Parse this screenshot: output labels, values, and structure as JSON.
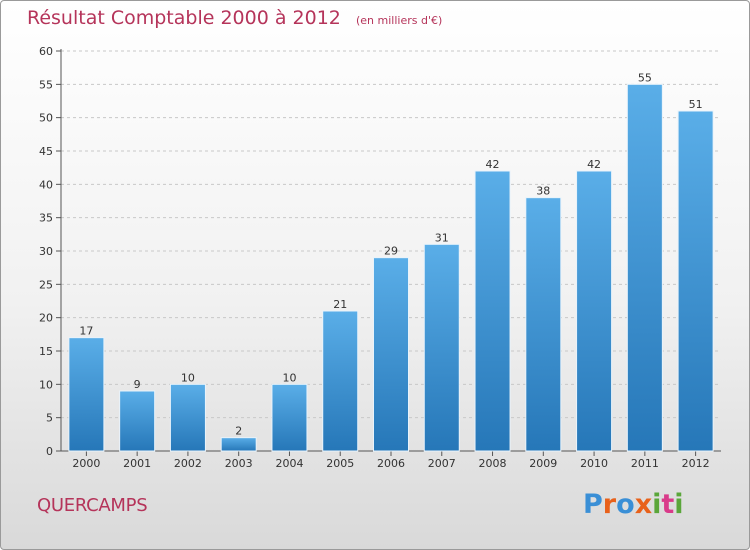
{
  "header": {
    "title": "Résultat Comptable 2000 à 2012",
    "subtitle": "(en milliers d'€)"
  },
  "commune": "QUERCAMPS",
  "logo": {
    "text": "Proxiti",
    "letters": [
      {
        "char": "P",
        "color": "#3a8fd6"
      },
      {
        "char": "r",
        "color": "#e8611a"
      },
      {
        "char": "o",
        "color": "#3a8fd6"
      },
      {
        "char": "x",
        "color": "#e8611a"
      },
      {
        "char": "i",
        "color": "#5aa63a"
      },
      {
        "char": "t",
        "color": "#d93b8a"
      },
      {
        "char": "i",
        "color": "#5aa63a"
      }
    ]
  },
  "colors": {
    "title": "#b5345a",
    "bar_top": "#5aaee8",
    "bar_bottom": "#2677b8",
    "grid": "#c8c8c8"
  },
  "chart_data": {
    "type": "bar",
    "title": "Résultat Comptable 2000 à 2012",
    "subtitle": "(en milliers d'€)",
    "xlabel": "",
    "ylabel": "",
    "categories": [
      "2000",
      "2001",
      "2002",
      "2003",
      "2004",
      "2005",
      "2006",
      "2007",
      "2008",
      "2009",
      "2010",
      "2011",
      "2012"
    ],
    "values": [
      17,
      9,
      10,
      2,
      10,
      21,
      29,
      31,
      42,
      38,
      42,
      55,
      51
    ],
    "ylim": [
      0,
      60
    ],
    "yticks": [
      0,
      5,
      10,
      15,
      20,
      25,
      30,
      35,
      40,
      45,
      50,
      55,
      60
    ],
    "grid": true,
    "grid_style": "dashed-horizontal"
  }
}
